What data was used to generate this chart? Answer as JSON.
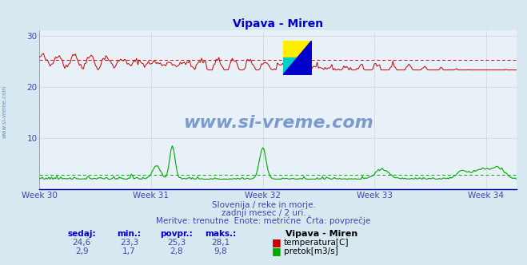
{
  "title": "Vipava - Miren",
  "title_color": "#0000cc",
  "background_color": "#d8e8f0",
  "plot_background_color": "#e8f0f8",
  "grid_color": "#b8c8d8",
  "x_labels": [
    "Week 30",
    "Week 31",
    "Week 32",
    "Week 33",
    "Week 34"
  ],
  "x_tick_positions": [
    0,
    84,
    168,
    252,
    336
  ],
  "y_ticks": [
    10,
    20,
    30
  ],
  "ylim": [
    0,
    31
  ],
  "n_points": 360,
  "temp_color": "#cc0000",
  "flow_color": "#00aa00",
  "temp_min": 23.3,
  "temp_max": 28.1,
  "temp_avg": 25.3,
  "temp_current": 24.6,
  "flow_min": 1.7,
  "flow_max": 9.8,
  "flow_avg": 2.8,
  "flow_current": 2.9,
  "subtitle1": "Slovenija / reke in morje.",
  "subtitle2": "zadnji mesec / 2 uri.",
  "subtitle3": "Meritve: trenutne  Enote: metrične  Črta: povprečje",
  "subtitle_color": "#4444aa",
  "watermark": "www.si-vreme.com",
  "watermark_color": "#2255aa",
  "label_color": "#4444aa",
  "stat_color": "#4444aa",
  "stat_label_bold_color": "#0000cc",
  "legend_temp_color": "#cc0000",
  "legend_flow_color": "#00aa00",
  "sidebar_text": "www.si-vreme.com",
  "sidebar_color": "#4477aa",
  "logo_yellow": "#ffee00",
  "logo_cyan": "#00cccc",
  "logo_blue": "#0000cc"
}
